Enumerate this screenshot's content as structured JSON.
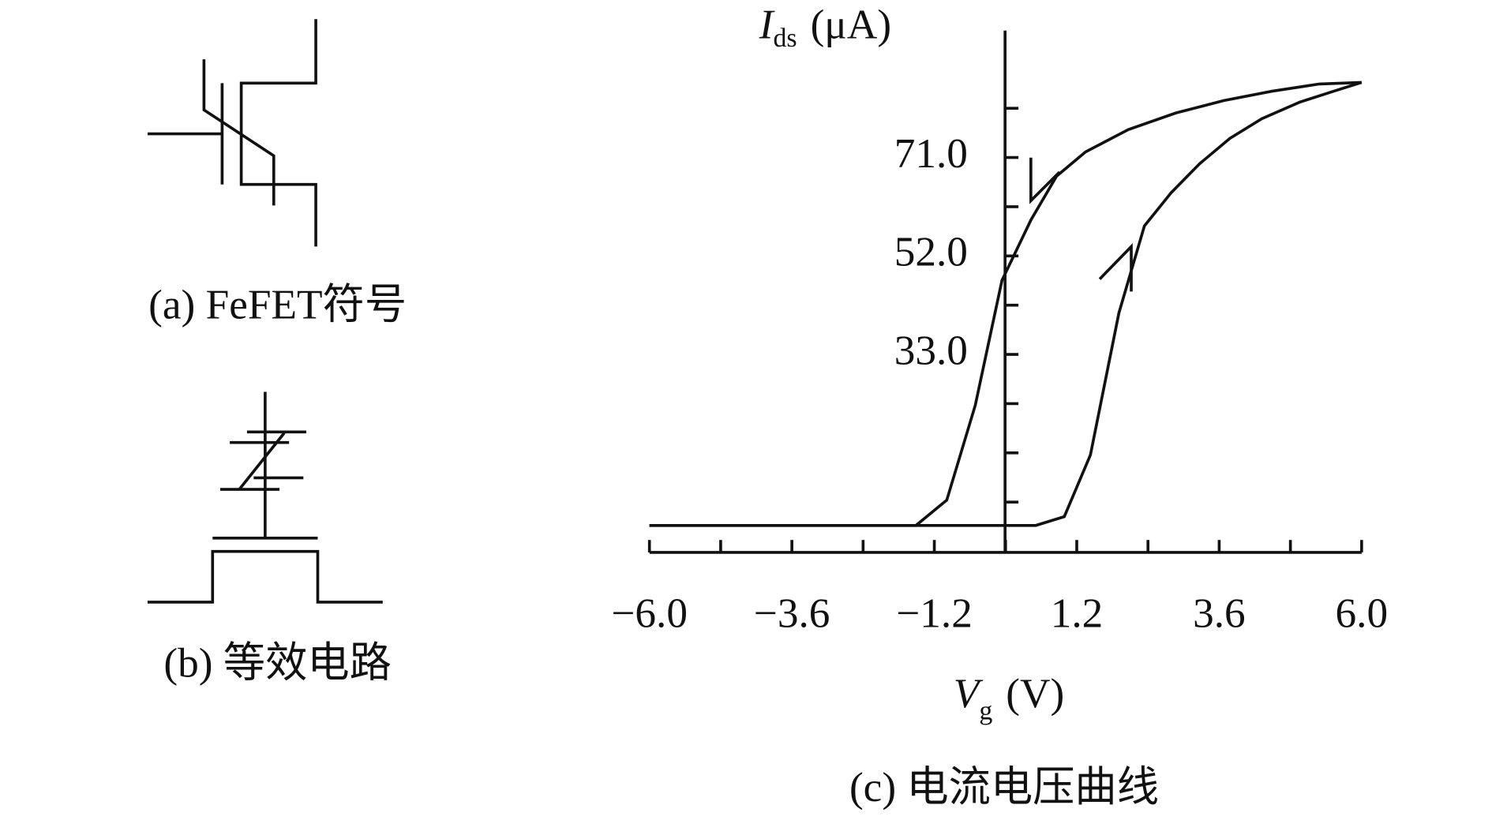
{
  "panels": [
    {
      "caption": "(a) FeFET符号"
    },
    {
      "caption": "(b) 等效电路"
    }
  ],
  "chart_data": {
    "type": "line",
    "caption": "(c) 电流电压曲线",
    "x_label": {
      "symbol": "V",
      "subscript": "g",
      "unit": "(V)"
    },
    "y_label": {
      "symbol": "I",
      "subscript": "ds",
      "unit": "(μA)"
    },
    "color": "#111111",
    "series": [
      {
        "x": [
          -6.0,
          0.51,
          0.99,
          1.43,
          1.91,
          2.34,
          2.79,
          3.27,
          3.78,
          4.32,
          4.96,
          5.53,
          6.0
        ],
        "values": [
          0,
          0,
          1.7,
          13.6,
          41.0,
          57.8,
          64.2,
          69.8,
          74.7,
          78.5,
          81.7,
          83.8,
          85.5
        ]
      },
      {
        "x": [
          6.0,
          5.29,
          4.49,
          3.68,
          2.87,
          2.07,
          1.35,
          0.86,
          0.43,
          -0.06,
          -0.51,
          -0.99,
          -1.51,
          -6.0
        ],
        "values": [
          85.5,
          85.2,
          83.8,
          82.0,
          79.6,
          76.4,
          72.1,
          67.4,
          59.0,
          47.3,
          23.2,
          4.9,
          0,
          0
        ]
      }
    ],
    "xlim": [
      -6.0,
      6.0
    ],
    "ylim": [
      -5.2,
      95.5
    ],
    "xticks": [
      {
        "value": -6.0,
        "label": "−6.0"
      },
      {
        "value": -3.6,
        "label": "−3.6"
      },
      {
        "value": -1.2,
        "label": "−1.2"
      },
      {
        "value": 1.2,
        "label": "1.2"
      },
      {
        "value": 3.6,
        "label": "3.6"
      },
      {
        "value": 6.0,
        "label": "6.0"
      }
    ],
    "xminor_ticks": [
      -4.8,
      -2.4,
      0,
      2.4,
      4.8
    ],
    "yticks": [
      {
        "value": 33,
        "label": "33.0"
      },
      {
        "value": 52,
        "label": "52.0"
      },
      {
        "value": 71,
        "label": "71.0"
      }
    ],
    "yminor_ticks": [
      4.5,
      14,
      23.5,
      42.5,
      61.5,
      80.5
    ]
  }
}
